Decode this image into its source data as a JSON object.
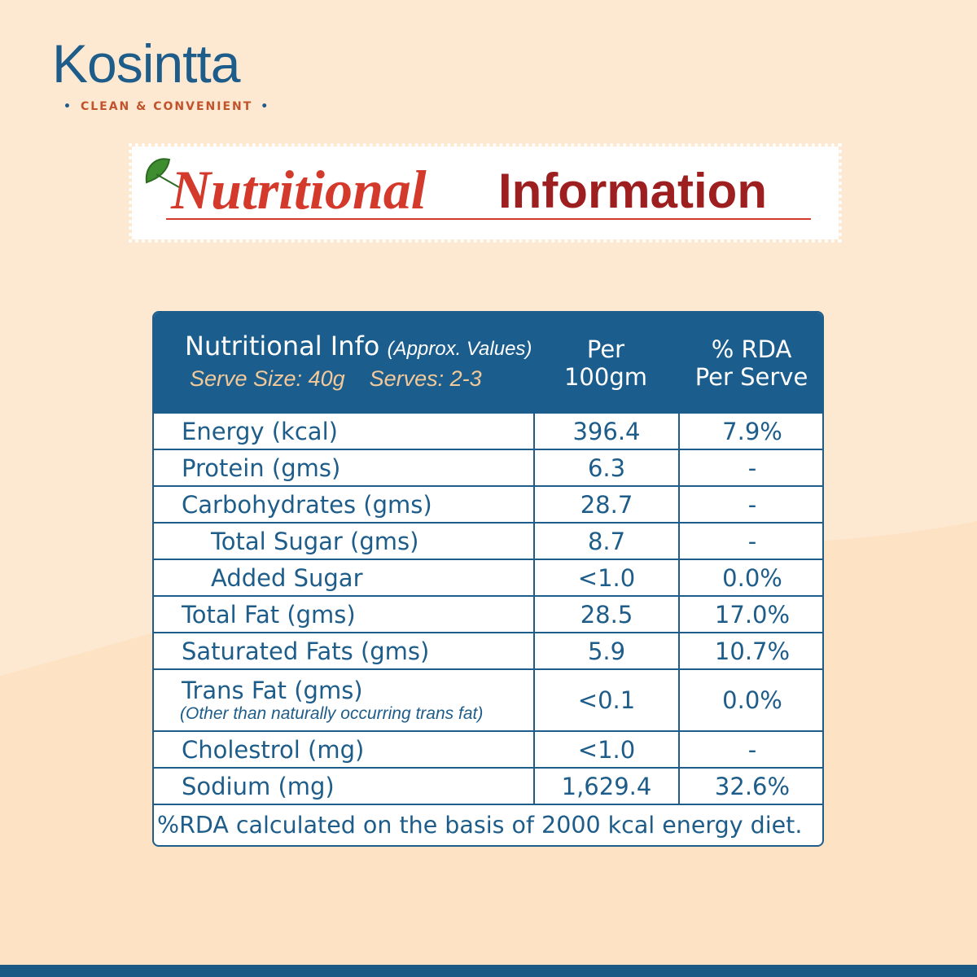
{
  "brand": {
    "name": "Kosintta",
    "tagline": "CLEAN & CONVENIENT"
  },
  "heading": {
    "italic": "Nutritional",
    "bold": "Information"
  },
  "table": {
    "header": {
      "title": "Nutritional Info",
      "note": "(Approx. Values)",
      "serve_size": "Serve Size: 40g",
      "serves": "Serves: 2-3",
      "col1": "Per 100gm",
      "col2": "% RDA Per Serve"
    },
    "rows": [
      {
        "nutrient": "Energy (kcal)",
        "per_100gm": "396.4",
        "rda": "7.9%"
      },
      {
        "nutrient": "Protein (gms)",
        "per_100gm": "6.3",
        "rda": "-"
      },
      {
        "nutrient": "Carbohydrates (gms)",
        "per_100gm": "28.7",
        "rda": "-"
      },
      {
        "nutrient": "Total Sugar (gms)",
        "per_100gm": "8.7",
        "rda": "-"
      },
      {
        "nutrient": "Added Sugar",
        "per_100gm": "<1.0",
        "rda": "0.0%"
      },
      {
        "nutrient": "Total Fat (gms)",
        "per_100gm": "28.5",
        "rda": "17.0%"
      },
      {
        "nutrient": "Saturated Fats (gms)",
        "per_100gm": "5.9",
        "rda": "10.7%"
      },
      {
        "nutrient": "Trans Fat (gms)",
        "note": "(Other than naturally occurring trans fat)",
        "per_100gm": "<0.1",
        "rda": "0.0%"
      },
      {
        "nutrient": "Cholestrol (mg)",
        "per_100gm": "<1.0",
        "rda": "-"
      },
      {
        "nutrient": "Sodium (mg)",
        "per_100gm": "1,629.4",
        "rda": "32.6%"
      }
    ],
    "footnote": "%RDA calculated on the basis of 2000 kcal energy diet."
  }
}
